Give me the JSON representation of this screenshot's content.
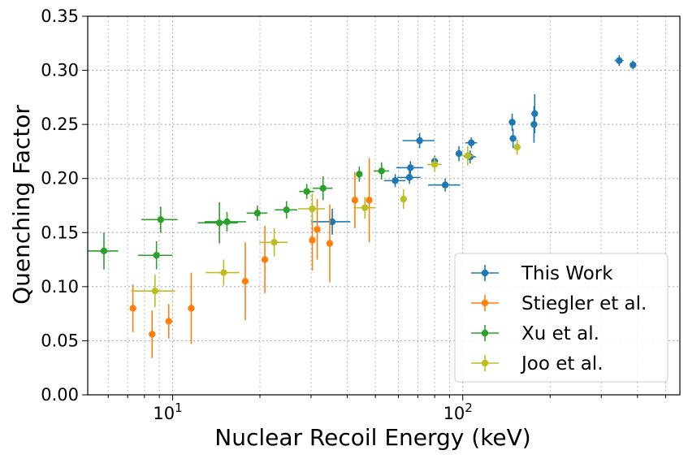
{
  "chart_data": {
    "type": "scatter",
    "title": "",
    "xlabel": "Nuclear Recoil Energy (keV)",
    "ylabel": "Quenching Factor",
    "xscale": "log",
    "xlim": [
      5.1,
      560
    ],
    "ylim": [
      0,
      0.35
    ],
    "x_ticks": [
      {
        "value": 10,
        "label": "10",
        "exp": "1"
      },
      {
        "value": 100,
        "label": "10",
        "exp": "2"
      }
    ],
    "y_ticks": [
      "0.00",
      "0.05",
      "0.10",
      "0.15",
      "0.20",
      "0.25",
      "0.30",
      "0.35"
    ],
    "grid": true,
    "legend_position": "lower right",
    "series": [
      {
        "name": "This Work",
        "color": "#1f77b4",
        "points": [
          {
            "x": 35.5,
            "y": 0.16,
            "xerr": [
              5.5,
              5.5
            ],
            "yerr": [
              0.012,
              0.012
            ]
          },
          {
            "x": 58.5,
            "y": 0.198,
            "xerr": [
              5,
              5
            ],
            "yerr": [
              0.006,
              0.006
            ]
          },
          {
            "x": 65.5,
            "y": 0.201,
            "xerr": [
              6,
              6
            ],
            "yerr": [
              0.006,
              0.006
            ]
          },
          {
            "x": 66,
            "y": 0.21,
            "xerr": [
              7,
              7
            ],
            "yerr": [
              0.006,
              0.006
            ]
          },
          {
            "x": 71,
            "y": 0.235,
            "xerr": [
              9,
              9
            ],
            "yerr": [
              0.007,
              0.007
            ]
          },
          {
            "x": 80,
            "y": 0.216,
            "xerr": [
              0,
              0
            ],
            "yerr": [
              0.005,
              0.005
            ]
          },
          {
            "x": 87,
            "y": 0.194,
            "xerr": [
              11,
              11
            ],
            "yerr": [
              0.006,
              0.006
            ]
          },
          {
            "x": 97,
            "y": 0.223,
            "xerr": [
              0,
              0
            ],
            "yerr": [
              0.007,
              0.007
            ]
          },
          {
            "x": 106,
            "y": 0.22,
            "xerr": [
              5,
              5
            ],
            "yerr": [
              0.006,
              0.006
            ]
          },
          {
            "x": 107,
            "y": 0.233,
            "xerr": [
              5,
              5
            ],
            "yerr": [
              0.005,
              0.005
            ]
          },
          {
            "x": 148,
            "y": 0.252,
            "xerr": [
              0,
              0
            ],
            "yerr": [
              0.008,
              0.008
            ]
          },
          {
            "x": 149,
            "y": 0.237,
            "xerr": [
              0,
              0
            ],
            "yerr": [
              0.009,
              0.009
            ]
          },
          {
            "x": 176,
            "y": 0.25,
            "xerr": [
              0,
              0
            ],
            "yerr": [
              0.017,
              0.017
            ]
          },
          {
            "x": 177,
            "y": 0.26,
            "xerr": [
              0,
              0
            ],
            "yerr": [
              0.018,
              0.018
            ]
          },
          {
            "x": 346,
            "y": 0.309,
            "xerr": [
              12,
              12
            ],
            "yerr": [
              0.005,
              0.005
            ]
          },
          {
            "x": 386,
            "y": 0.305,
            "xerr": [
              9,
              9
            ],
            "yerr": [
              0.004,
              0.004
            ]
          }
        ]
      },
      {
        "name": "Stiegler et al.",
        "color": "#ff7f0e",
        "points": [
          {
            "x": 7.3,
            "y": 0.08,
            "xerr": [
              0,
              0
            ],
            "yerr": [
              0.022,
              0.022
            ]
          },
          {
            "x": 8.5,
            "y": 0.056,
            "xerr": [
              0,
              0
            ],
            "yerr": [
              0.022,
              0.022
            ]
          },
          {
            "x": 9.7,
            "y": 0.068,
            "xerr": [
              0,
              0
            ],
            "yerr": [
              0.016,
              0.016
            ]
          },
          {
            "x": 11.6,
            "y": 0.08,
            "xerr": [
              0,
              0
            ],
            "yerr": [
              0.033,
              0.033
            ]
          },
          {
            "x": 17.8,
            "y": 0.105,
            "xerr": [
              0,
              0
            ],
            "yerr": [
              0.036,
              0.036
            ]
          },
          {
            "x": 20.8,
            "y": 0.125,
            "xerr": [
              0,
              0
            ],
            "yerr": [
              0.031,
              0.031
            ]
          },
          {
            "x": 30.3,
            "y": 0.143,
            "xerr": [
              0,
              0
            ],
            "yerr": [
              0.028,
              0.028
            ]
          },
          {
            "x": 31.5,
            "y": 0.153,
            "xerr": [
              0,
              0
            ],
            "yerr": [
              0.028,
              0.028
            ]
          },
          {
            "x": 34.8,
            "y": 0.14,
            "xerr": [
              0,
              0
            ],
            "yerr": [
              0.036,
              0.036
            ]
          },
          {
            "x": 42.5,
            "y": 0.18,
            "xerr": [
              0,
              0
            ],
            "yerr": [
              0.026,
              0.026
            ]
          },
          {
            "x": 47.6,
            "y": 0.18,
            "xerr": [
              0,
              0
            ],
            "yerr": [
              0.039,
              0.039
            ]
          }
        ]
      },
      {
        "name": "Xu et al.",
        "color": "#2ca02c",
        "points": [
          {
            "x": 5.8,
            "y": 0.133,
            "xerr": [
              0.7,
              0.7
            ],
            "yerr": [
              0.017,
              0.017
            ]
          },
          {
            "x": 8.8,
            "y": 0.129,
            "xerr": [
              1.2,
              1.2
            ],
            "yerr": [
              0.013,
              0.013
            ]
          },
          {
            "x": 9.1,
            "y": 0.162,
            "xerr": [
              1.3,
              1.3
            ],
            "yerr": [
              0.012,
              0.012
            ]
          },
          {
            "x": 14.5,
            "y": 0.159,
            "xerr": [
              2.3,
              2.3
            ],
            "yerr": [
              0.019,
              0.019
            ]
          },
          {
            "x": 15.4,
            "y": 0.16,
            "xerr": [
              2.5,
              2.5
            ],
            "yerr": [
              0.009,
              0.009
            ]
          },
          {
            "x": 19.6,
            "y": 0.168,
            "xerr": [
              1.6,
              1.6
            ],
            "yerr": [
              0.007,
              0.007
            ]
          },
          {
            "x": 24.7,
            "y": 0.171,
            "xerr": [
              2.2,
              2.2
            ],
            "yerr": [
              0.008,
              0.008
            ]
          },
          {
            "x": 29.0,
            "y": 0.188,
            "xerr": [
              1.7,
              1.7
            ],
            "yerr": [
              0.007,
              0.007
            ]
          },
          {
            "x": 33.0,
            "y": 0.191,
            "xerr": [
              2.6,
              2.6
            ],
            "yerr": [
              0.011,
              0.011
            ]
          },
          {
            "x": 44.0,
            "y": 0.204,
            "xerr": [
              0,
              0
            ],
            "yerr": [
              0.007,
              0.007
            ]
          },
          {
            "x": 52.5,
            "y": 0.207,
            "xerr": [
              3.2,
              3.2
            ],
            "yerr": [
              0.008,
              0.008
            ]
          }
        ]
      },
      {
        "name": "Joo et al.",
        "color": "#bcbd22",
        "points": [
          {
            "x": 8.7,
            "y": 0.096,
            "xerr": [
              1.5,
              1.5
            ],
            "yerr": [
              0.015,
              0.015
            ]
          },
          {
            "x": 15.0,
            "y": 0.113,
            "xerr": [
              2.0,
              2.0
            ],
            "yerr": [
              0.012,
              0.012
            ]
          },
          {
            "x": 22.4,
            "y": 0.141,
            "xerr": [
              2.5,
              2.5
            ],
            "yerr": [
              0.013,
              0.013
            ]
          },
          {
            "x": 30.3,
            "y": 0.172,
            "xerr": [
              3.2,
              3.2
            ],
            "yerr": [
              0.014,
              0.014
            ]
          },
          {
            "x": 46.0,
            "y": 0.173,
            "xerr": [
              4.0,
              4.0
            ],
            "yerr": [
              0.01,
              0.01
            ]
          },
          {
            "x": 62.5,
            "y": 0.181,
            "xerr": [
              0,
              0
            ],
            "yerr": [
              0.009,
              0.009
            ]
          },
          {
            "x": 80.0,
            "y": 0.213,
            "xerr": [
              4.5,
              4.5
            ],
            "yerr": [
              0.007,
              0.007
            ]
          },
          {
            "x": 104.0,
            "y": 0.221,
            "xerr": [
              5.5,
              5.5
            ],
            "yerr": [
              0.009,
              0.009
            ]
          },
          {
            "x": 154.0,
            "y": 0.229,
            "xerr": [
              0,
              0
            ],
            "yerr": [
              0.007,
              0.007
            ]
          }
        ]
      }
    ]
  }
}
